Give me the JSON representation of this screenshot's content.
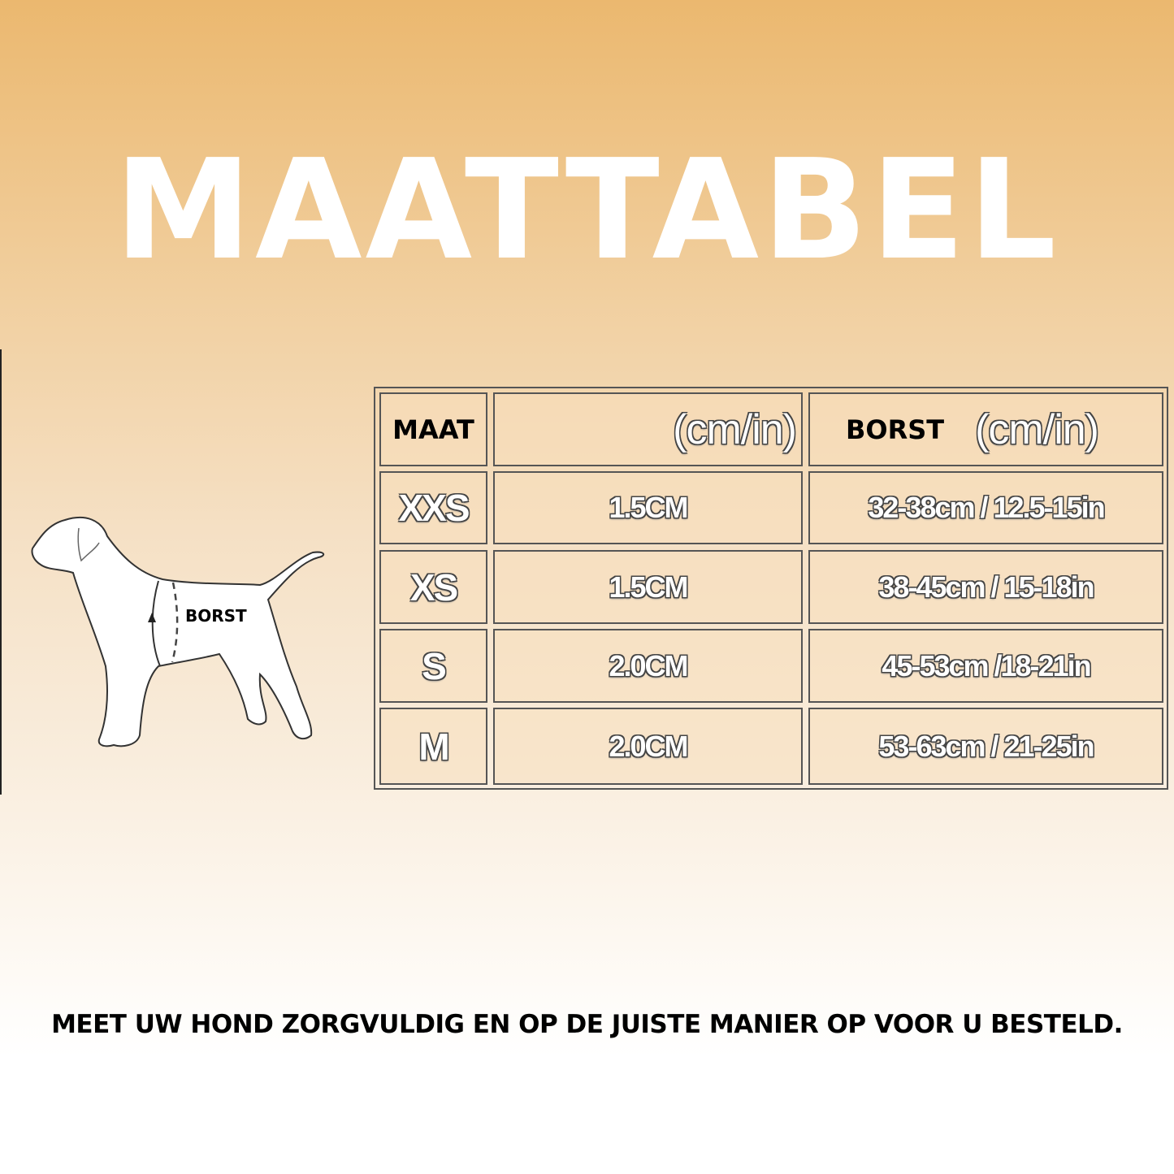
{
  "title": "MAATTABEL",
  "diagram": {
    "label": "BORST"
  },
  "table": {
    "headers": {
      "size": "MAAT",
      "width_unit": "(cm/in)",
      "chest": "BORST",
      "chest_unit": "(cm/in)"
    },
    "rows": [
      {
        "size": "XXS",
        "width": "1.5CM",
        "chest": "32-38cm / 12.5-15in"
      },
      {
        "size": "XS",
        "width": "1.5CM",
        "chest": "38-45cm / 15-18in"
      },
      {
        "size": "S",
        "width": "2.0CM",
        "chest": "45-53cm /18-21in"
      },
      {
        "size": "M",
        "width": "2.0CM",
        "chest": "53-63cm / 21-25in"
      }
    ]
  },
  "footer": "MEET UW HOND ZORGVULDIG EN OP DE JUISTE MANIER OP VOOR U BESTELD."
}
